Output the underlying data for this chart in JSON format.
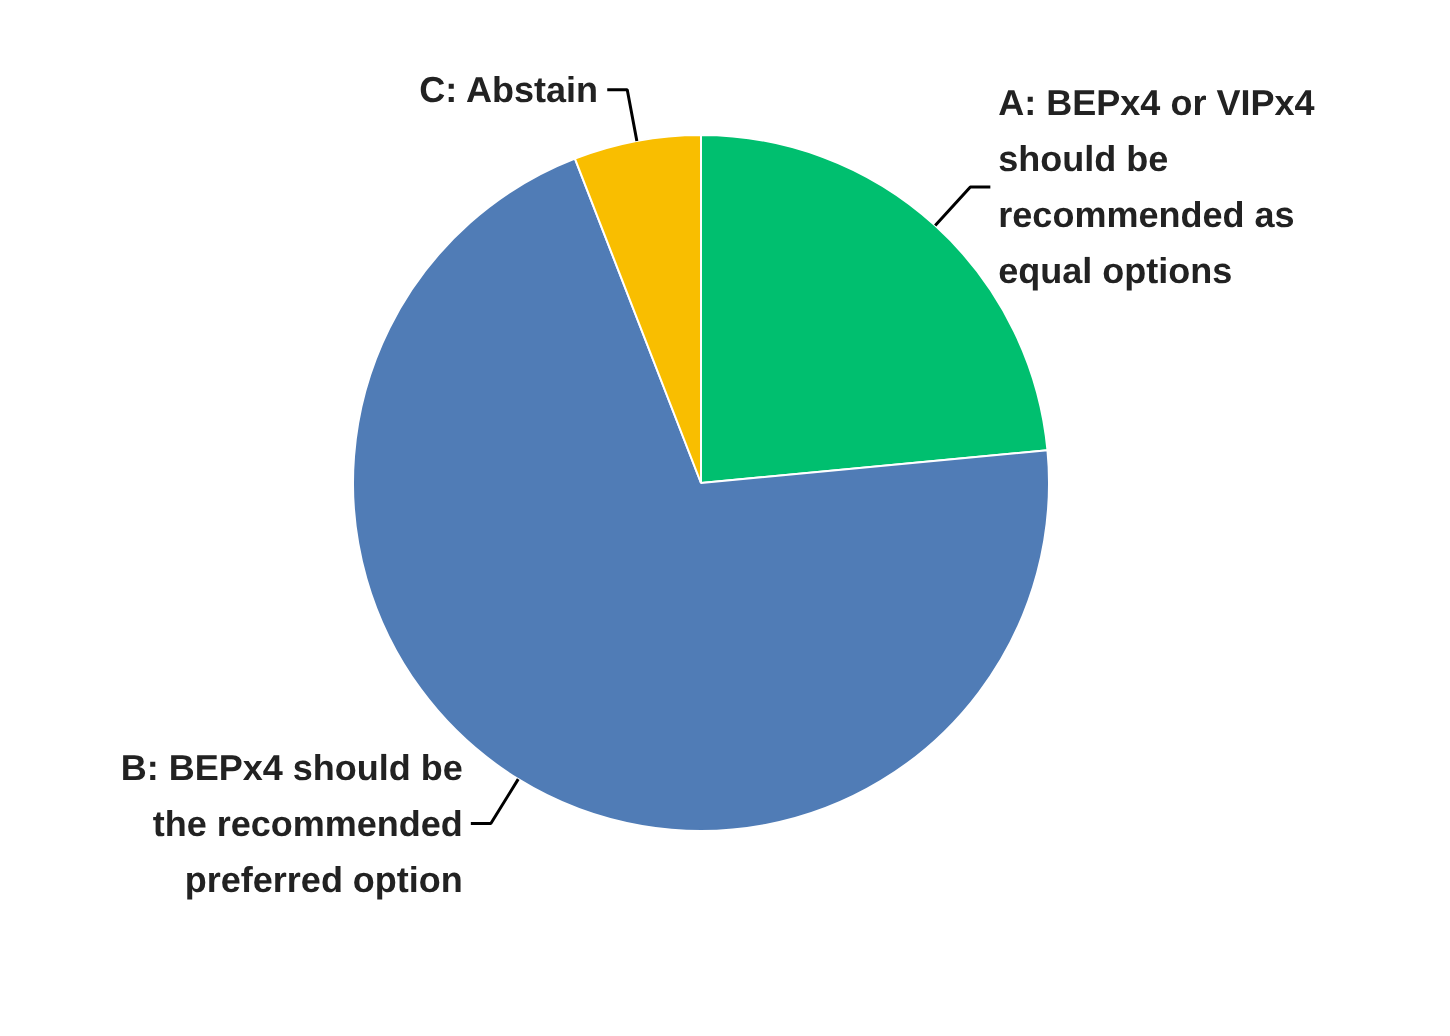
{
  "chart_data": {
    "type": "pie",
    "categories": [
      "A: BEPx4 or VIPx4\nshould be\nrecommended as\nequal options",
      "B: BEPx4 should be\nthe recommended\npreferred option",
      "C: Abstain"
    ],
    "values": [
      23.5,
      70.6,
      5.9
    ],
    "colors": [
      "#00bf6f",
      "#507cb6",
      "#f9be00"
    ]
  }
}
